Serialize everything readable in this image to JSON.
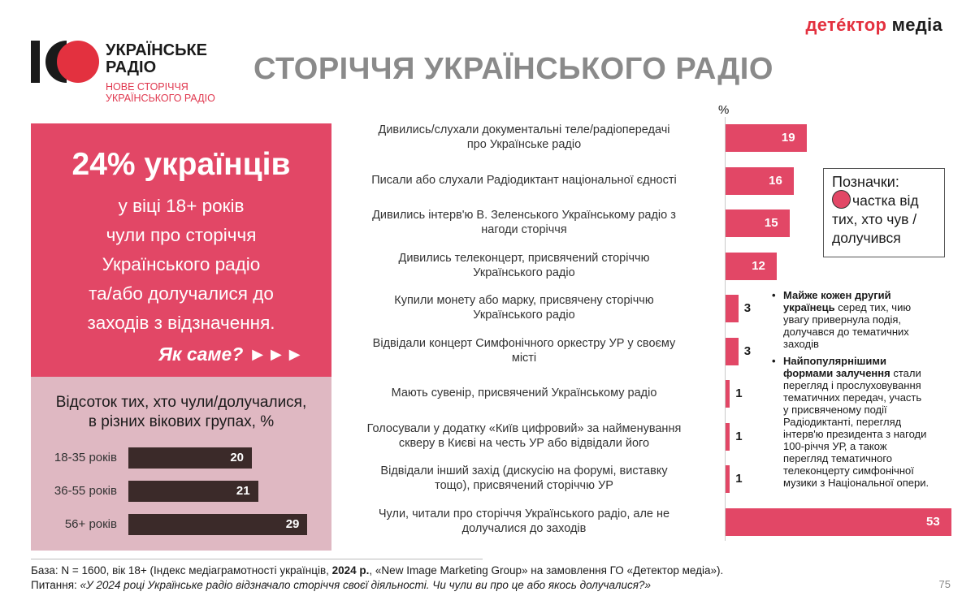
{
  "logo": {
    "title_line1": "УКРАЇНСЬКЕ",
    "title_line2": "РАДІО",
    "sub_line1": "НОВЕ СТОРІЧЧЯ",
    "sub_line2": "УКРАЇНСЬКОГО РАДІО"
  },
  "brand": {
    "part1": "детéктор",
    "part2": " медіа"
  },
  "page_title": "СТОРІЧЧЯ УКРАЇНСЬКОГО РАДІО",
  "red_panel": {
    "headline": "24% українців",
    "lines": [
      "у віці 18+ років",
      "чули про сторіччя",
      "Українського радіо",
      "та/або долучалися до",
      "заходів з відзначення."
    ],
    "cta": "Як саме? ►►►"
  },
  "age_panel": {
    "title_line1": "Відсоток тих, хто чули/долучалися,",
    "title_line2": "в різних вікових групах, %",
    "groups": [
      {
        "label": "18-35 років",
        "value": 20
      },
      {
        "label": "36-55 років",
        "value": 21
      },
      {
        "label": "56+ років",
        "value": 29
      }
    ]
  },
  "chart_data": {
    "type": "bar",
    "orientation": "horizontal",
    "unit_label": "%",
    "categories": [
      [
        "Дивились/слухали документальні теле/радіопередачі",
        "про Українське радіо"
      ],
      [
        "Писали або слухали Радіодиктант національної єдності"
      ],
      [
        "Дивились інтерв'ю В. Зеленського Українському радіо з",
        "нагоди сторіччя"
      ],
      [
        "Дивились телеконцерт, присвячений сторіччю",
        "Українського радіо"
      ],
      [
        "Купили монету або марку, присвячену сторіччю",
        "Українського радіо"
      ],
      [
        "Відвідали концерт Симфонічного оркестру УР у своєму",
        "місті"
      ],
      [
        "Мають сувенір, присвячений Українському радіо"
      ],
      [
        "Голосували у додатку «Київ цифровий» за найменування",
        "скверу в Києві на честь УР або відвідали його"
      ],
      [
        "Відвідали інший захід (дискусію на форумі, виставку",
        "тощо), присвячений сторіччю УР"
      ],
      [
        "Чули, читали про сторіччя Українського радіо, але не",
        "долучалися до заходів"
      ]
    ],
    "values": [
      19,
      16,
      15,
      12,
      3,
      3,
      1,
      1,
      1,
      53
    ],
    "color": "#e24766"
  },
  "legend": {
    "title": "Позначки:",
    "lines": [
      "частка від",
      "тих, хто чув /",
      "долучився"
    ]
  },
  "notes": [
    {
      "lines": [
        {
          "bold": "Майже кожен другий",
          "text": ""
        },
        {
          "bold": "українець",
          "text": " серед тих, чию"
        },
        {
          "bold": "",
          "text": "увагу привернула подія,"
        },
        {
          "bold": "",
          "text": "долучався до тематичних"
        },
        {
          "bold": "",
          "text": "заходів"
        }
      ]
    },
    {
      "lines": [
        {
          "bold": "Найпопулярнішими",
          "text": ""
        },
        {
          "bold": "формами залучення",
          "text": " стали"
        },
        {
          "bold": "",
          "text": "перегляд і прослуховування"
        },
        {
          "bold": "",
          "text": "тематичних передач, участь"
        },
        {
          "bold": "",
          "text": "у присвяченому події"
        },
        {
          "bold": "",
          "text": "Радіодиктанті, перегляд"
        },
        {
          "bold": "",
          "text": "інтерв'ю президента з нагоди"
        },
        {
          "bold": "",
          "text": "100-річчя УР, а також"
        },
        {
          "bold": "",
          "text": "перегляд тематичного"
        },
        {
          "bold": "",
          "text": "телеконцерту симфонічної"
        },
        {
          "bold": "",
          "text": "музики з Національної опери."
        }
      ]
    }
  ],
  "footer": {
    "base_prefix": "База: N = 1600, вік 18+ (Індекс медіаграмотності українців, ",
    "base_year": "2024 р.",
    "base_suffix": ", «New Image Marketing Group» на замовлення ГО «Детектор медіа»).",
    "question_prefix": "Питання: ",
    "question_text": "«У 2024 році  Українське радіо відзначало сторіччя своєї діяльності. Чи чули ви про це або якось долучалися?»"
  },
  "page_number": "75"
}
